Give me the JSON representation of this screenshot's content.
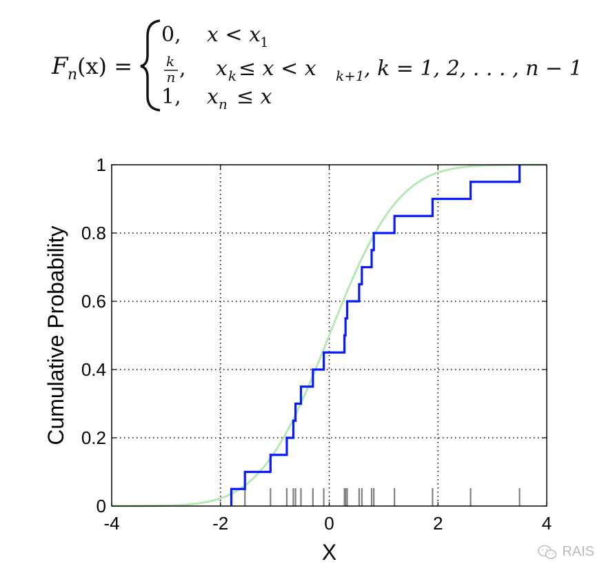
{
  "formula": {
    "lhs_F": "F",
    "lhs_sub": "n",
    "lhs_arg": "(x) =",
    "case1_val": "0,",
    "case1_cond_a": "x < x",
    "case1_cond_sub": "1",
    "case2_num": "k",
    "case2_den": "n",
    "case2_comma": ",",
    "case2_cond_a": "x",
    "case2_cond_sub1": "k",
    "case2_cond_b": "≤ x < x",
    "case2_cond_sub2": "k+1",
    "case2_cond_c": ", k = 1, 2, . . . , n − 1",
    "case3_val": "1,",
    "case3_cond_a": "x",
    "case3_cond_sub": "n",
    "case3_cond_b": "≤ x"
  },
  "chart_data": {
    "type": "line",
    "title": "",
    "xlabel": "X",
    "ylabel": "Cumulative Probability",
    "xlim": [
      -4,
      4
    ],
    "ylim": [
      0,
      1
    ],
    "xticks": [
      -4,
      -2,
      0,
      2,
      4
    ],
    "yticks": [
      0,
      0.2,
      0.4,
      0.6,
      0.8,
      1
    ],
    "xtick_labels": [
      "-4",
      "-2",
      "0",
      "2",
      "4"
    ],
    "ytick_labels": [
      "0",
      "0.2",
      "0.4",
      "0.6",
      "0.8",
      "1"
    ],
    "grid": true,
    "colors": {
      "empirical": "#0a1aff",
      "theoretical": "#b4e8b4",
      "rug": "#808080",
      "grid": "#000000"
    },
    "empirical_cdf_samples": [
      -1.8,
      -1.55,
      -1.08,
      -0.78,
      -0.66,
      -0.62,
      -0.52,
      -0.3,
      -0.1,
      0.28,
      0.3,
      0.33,
      0.55,
      0.6,
      0.78,
      0.82,
      1.2,
      1.9,
      2.6,
      3.5
    ],
    "theoretical": {
      "distribution": "normal",
      "mean": 0,
      "std": 1
    }
  },
  "watermark": {
    "text": "RAIS",
    "icon": "wechat-icon"
  }
}
